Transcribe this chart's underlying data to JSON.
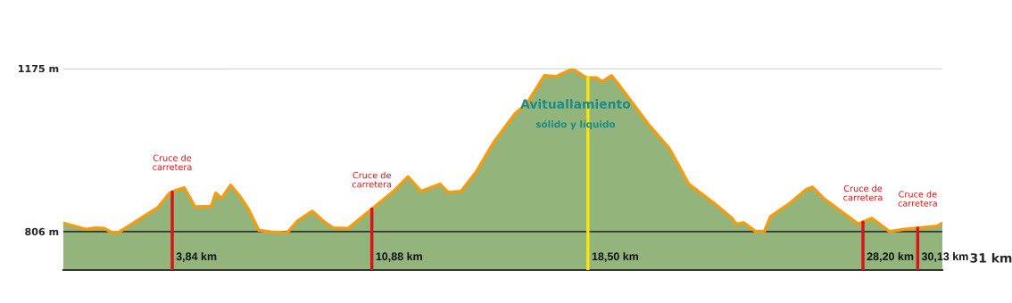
{
  "chart_data": {
    "type": "area",
    "x": [
      0,
      0.81,
      1.12,
      1.44,
      1.7,
      1.95,
      2.27,
      2.9,
      3.33,
      3.75,
      3.96,
      4.27,
      4.64,
      5.22,
      5.37,
      5.58,
      5.9,
      6.26,
      6.53,
      6.89,
      7.31,
      7.89,
      8.26,
      8.78,
      9.2,
      9.52,
      10.04,
      11.61,
      12.16,
      12.61,
      13.29,
      13.56,
      14.03,
      14.55,
      15.18,
      15.92,
      16.34,
      16.97,
      17.38,
      17.96,
      18.44,
      18.8,
      19.01,
      19.33,
      19.64,
      20.64,
      21.37,
      22.06,
      22.95,
      23.58,
      23.73,
      23.99,
      24.42,
      24.73,
      24.94,
      25.62,
      26.2,
      26.41,
      26.83,
      27.61,
      28.04,
      28.51,
      29.14,
      29.66,
      30.82,
      31
    ],
    "series": [
      {
        "color": "#f39c12",
        "values": [
          825,
          811,
          814,
          813,
          804,
          804,
          817,
          843,
          860,
          893,
          899,
          905,
          862,
          863,
          893,
          881,
          911,
          883,
          856,
          809,
          805,
          803,
          830,
          852,
          828,
          814,
          813,
          895,
          930,
          897,
          913,
          895,
          897,
          940,
          1008,
          1072,
          1095,
          1159,
          1157,
          1174,
          1154,
          1154,
          1145,
          1159,
          1134,
          1048,
          994,
          913,
          870,
          836,
          823,
          826,
          806,
          807,
          840,
          870,
          901,
          907,
          880,
          843,
          823,
          836,
          806,
          811,
          818,
          825
        ]
      }
    ],
    "xlim": [
      0,
      31
    ],
    "ylim": [
      719,
      1175
    ],
    "yticks": [
      {
        "value": 806,
        "label": "806 m"
      },
      {
        "value": 1175,
        "label": "1175 m"
      }
    ],
    "tick_labels": "y",
    "grid": "y",
    "ref_lines": [
      {
        "axis": "x",
        "value": 3.84,
        "label": "3,84 km",
        "color": "#d9141b"
      },
      {
        "axis": "x",
        "value": 10.88,
        "label": "10,88 km",
        "color": "#d9141b"
      },
      {
        "axis": "x",
        "value": 18.5,
        "label": "18,50 km",
        "color": "#f7e40c"
      },
      {
        "axis": "x",
        "value": 28.2,
        "label": "28,20 km",
        "color": "#d9141b"
      },
      {
        "axis": "x",
        "value": 30.13,
        "label": "30,13 km",
        "color": "#d9141b"
      }
    ],
    "annotations": [
      "31 km",
      {
        "text": "Cruce de\ncarretera",
        "x": 3.84,
        "y": 896
      },
      {
        "text": "Cruce de\ncarretera",
        "x": 10.88,
        "y": 857
      },
      {
        "text": "Avituallamiento",
        "x": 18.5,
        "y": 1154
      },
      "sólido y líquido",
      {
        "text": "Cruce de\ncarretera",
        "x": 28.2,
        "y": 827
      },
      {
        "text": "Cruce de\ncarretera",
        "x": 30.13,
        "y": 814
      }
    ]
  }
}
